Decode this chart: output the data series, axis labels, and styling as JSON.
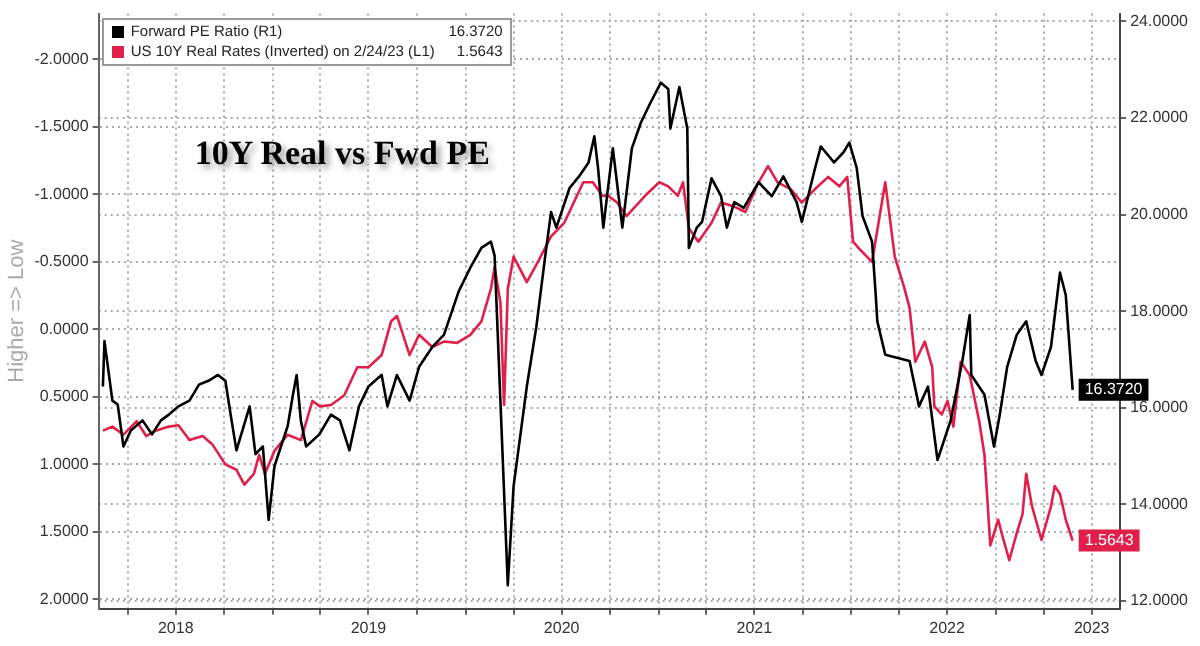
{
  "chart_data": {
    "type": "line",
    "title": "10Y Real vs Fwd PE",
    "ylabel": "Higher => Low",
    "legend": "top left",
    "grid": true,
    "annotations": [
      "16.3720",
      "1.5643"
    ],
    "xlim": [
      "2018-02-05",
      "2023-05-25"
    ],
    "xticks": [
      {
        "value": "2018-04-01",
        "label": null
      },
      {
        "value": "2018-07-01",
        "label": "2018"
      },
      {
        "value": "2018-10-01",
        "label": null
      },
      {
        "value": "2019-01-01",
        "label": null
      },
      {
        "value": "2019-04-01",
        "label": null
      },
      {
        "value": "2019-07-01",
        "label": "2019"
      },
      {
        "value": "2019-10-01",
        "label": null
      },
      {
        "value": "2020-01-01",
        "label": null
      },
      {
        "value": "2020-04-01",
        "label": null
      },
      {
        "value": "2020-07-01",
        "label": "2020"
      },
      {
        "value": "2020-10-01",
        "label": null
      },
      {
        "value": "2021-01-01",
        "label": null
      },
      {
        "value": "2021-04-01",
        "label": null
      },
      {
        "value": "2021-07-01",
        "label": "2021"
      },
      {
        "value": "2021-10-01",
        "label": null
      },
      {
        "value": "2022-01-01",
        "label": null
      },
      {
        "value": "2022-04-01",
        "label": null
      },
      {
        "value": "2022-07-01",
        "label": "2022"
      },
      {
        "value": "2022-10-01",
        "label": null
      },
      {
        "value": "2023-01-01",
        "label": null
      },
      {
        "value": "2023-04-01",
        "label": "2023"
      }
    ],
    "ylim": [
      2.07,
      -2.34
    ],
    "yticks": [
      {
        "value": -2,
        "label": "-2.0000"
      },
      {
        "value": -1.5,
        "label": "-1.5000"
      },
      {
        "value": -1,
        "label": "-1.0000"
      },
      {
        "value": -0.5,
        "label": "-0.5000"
      },
      {
        "value": 0,
        "label": "0.0000"
      },
      {
        "value": 0.5,
        "label": "0.5000"
      },
      {
        "value": 1,
        "label": "1.0000"
      },
      {
        "value": 1.5,
        "label": "1.5000"
      },
      {
        "value": 2,
        "label": "2.0000"
      }
    ],
    "y2lim": [
      11.84,
      24.16
    ],
    "y2ticks": [
      {
        "value": 12,
        "label": "12.0000"
      },
      {
        "value": 14,
        "label": "14.0000"
      },
      {
        "value": 16,
        "label": "16.0000"
      },
      {
        "value": 18,
        "label": "18.0000"
      },
      {
        "value": 20,
        "label": "20.0000"
      },
      {
        "value": 22,
        "label": "22.0000"
      },
      {
        "value": 24,
        "label": "24.0000"
      }
    ],
    "series": [
      {
        "name": "Forward PE Ratio (R1)",
        "color": "#000000",
        "axis": "y2",
        "x": [
          "2018-02-13",
          "2018-02-16",
          "2018-03-03",
          "2018-03-13",
          "2018-03-24",
          "2018-04-07",
          "2018-04-29",
          "2018-05-17",
          "2018-06-03",
          "2018-06-18",
          "2018-07-06",
          "2018-07-27",
          "2018-08-14",
          "2018-09-01",
          "2018-09-19",
          "2018-10-03",
          "2018-10-13",
          "2018-10-24",
          "2018-11-18",
          "2018-11-29",
          "2018-12-13",
          "2018-12-24",
          "2019-01-04",
          "2019-01-29",
          "2019-02-08",
          "2019-02-15",
          "2019-02-23",
          "2019-03-05",
          "2019-03-30",
          "2019-04-21",
          "2019-05-08",
          "2019-05-26",
          "2019-06-13",
          "2019-07-01",
          "2019-07-26",
          "2019-08-06",
          "2019-08-24",
          "2019-09-17",
          "2019-10-05",
          "2019-10-30",
          "2019-11-21",
          "2019-12-19",
          "2020-01-10",
          "2020-01-31",
          "2020-02-18",
          "2020-02-25",
          "2020-03-07",
          "2020-03-21",
          "2020-04-01",
          "2020-04-26",
          "2020-05-14",
          "2020-05-31",
          "2020-06-11",
          "2020-06-21",
          "2020-07-16",
          "2020-08-03",
          "2020-08-21",
          "2020-09-01",
          "2020-09-08",
          "2020-09-18",
          "2020-09-25",
          "2020-10-06",
          "2020-10-24",
          "2020-11-11",
          "2020-11-28",
          "2020-12-16",
          "2021-01-05",
          "2021-01-19",
          "2021-01-23",
          "2021-02-09",
          "2021-02-24",
          "2021-02-27",
          "2021-03-14",
          "2021-03-24",
          "2021-04-11",
          "2021-04-29",
          "2021-05-10",
          "2021-05-24",
          "2021-06-11",
          "2021-07-09",
          "2021-08-03",
          "2021-08-25",
          "2021-09-19",
          "2021-09-29",
          "2021-10-24",
          "2021-11-04",
          "2021-11-29",
          "2021-12-17",
          "2021-12-28",
          "2022-01-11",
          "2022-01-22",
          "2022-02-09",
          "2022-02-16",
          "2022-02-19",
          "2022-03-06",
          "2022-04-21",
          "2022-05-09",
          "2022-05-26",
          "2022-06-13",
          "2022-07-08",
          "2022-07-30",
          "2022-08-13",
          "2022-08-16",
          "2022-09-10",
          "2022-09-28",
          "2022-10-09",
          "2022-10-23",
          "2022-11-10",
          "2022-11-28",
          "2022-12-16",
          "2022-12-27",
          "2023-01-14",
          "2023-01-31",
          "2023-02-11",
          "2023-02-24"
        ],
        "values": [
          16.44,
          17.38,
          16.15,
          16.07,
          15.2,
          15.53,
          15.74,
          15.45,
          15.74,
          15.86,
          16.03,
          16.15,
          16.48,
          16.56,
          16.68,
          16.56,
          15.86,
          15.12,
          16.03,
          15.04,
          15.2,
          13.68,
          14.79,
          15.62,
          16.27,
          16.68,
          15.74,
          15.2,
          15.45,
          15.86,
          15.74,
          15.12,
          16.03,
          16.44,
          16.68,
          16.03,
          16.68,
          16.15,
          16.85,
          17.26,
          17.51,
          18.41,
          18.9,
          19.31,
          19.44,
          19.15,
          16.15,
          12.33,
          14.38,
          16.44,
          17.67,
          19.15,
          20.05,
          19.73,
          20.55,
          20.79,
          21.08,
          21.62,
          20.96,
          19.73,
          20.38,
          21.37,
          19.73,
          21.37,
          21.9,
          22.31,
          22.73,
          22.6,
          21.78,
          22.64,
          21.78,
          19.31,
          19.73,
          19.85,
          20.75,
          20.38,
          19.73,
          20.26,
          20.14,
          20.67,
          20.38,
          20.79,
          20.26,
          19.85,
          20.96,
          21.41,
          21.08,
          21.29,
          21.49,
          20.96,
          19.97,
          19.44,
          18.33,
          17.79,
          17.1,
          16.97,
          16.03,
          16.44,
          14.92,
          15.74,
          16.97,
          17.92,
          16.68,
          16.27,
          15.2,
          15.86,
          16.85,
          17.51,
          17.79,
          16.97,
          16.68,
          17.26,
          18.8,
          18.33,
          16.372
        ],
        "value_labels": [
          null,
          null,
          null,
          null,
          null,
          null,
          null,
          null,
          null,
          null,
          null,
          null,
          null,
          null,
          null,
          null,
          null,
          null,
          null,
          null,
          null,
          null,
          null,
          null,
          null,
          null,
          null,
          null,
          null,
          null,
          null,
          null,
          null,
          null,
          null,
          null,
          null,
          null,
          null,
          null,
          null,
          null,
          null,
          null,
          null,
          null,
          null,
          null,
          null,
          null,
          null,
          null,
          null,
          null,
          null,
          null,
          null,
          null,
          null,
          null,
          null,
          null,
          null,
          null,
          null,
          null,
          null,
          null,
          null,
          null,
          null,
          null,
          null,
          null,
          null,
          null,
          null,
          null,
          null,
          null,
          null,
          null,
          null,
          null,
          null,
          null,
          null,
          null,
          null,
          null,
          null,
          null,
          null,
          null,
          null,
          null,
          null,
          null,
          null,
          null,
          null,
          null,
          null,
          null,
          null,
          null,
          null,
          null,
          null,
          null,
          null,
          null,
          null,
          null,
          "16.3720"
        ]
      },
      {
        "name": "US 10Y Real Rates (Inverted) on 2/24/23 (L1)",
        "color": "#e0204a",
        "x": [
          "2018-02-13",
          "2018-03-03",
          "2018-03-24",
          "2018-04-18",
          "2018-05-06",
          "2018-05-24",
          "2018-06-18",
          "2018-07-06",
          "2018-07-27",
          "2018-08-21",
          "2018-09-08",
          "2018-10-03",
          "2018-10-24",
          "2018-11-08",
          "2018-11-26",
          "2018-12-06",
          "2018-12-17",
          "2019-01-04",
          "2019-01-29",
          "2019-02-23",
          "2019-03-17",
          "2019-03-31",
          "2019-04-21",
          "2019-05-16",
          "2019-06-10",
          "2019-07-01",
          "2019-07-26",
          "2019-08-13",
          "2019-08-24",
          "2019-09-17",
          "2019-10-05",
          "2019-10-30",
          "2019-11-21",
          "2019-12-16",
          "2020-01-10",
          "2020-01-31",
          "2020-02-18",
          "2020-02-25",
          "2020-03-07",
          "2020-03-14",
          "2020-03-21",
          "2020-04-01",
          "2020-04-26",
          "2020-05-17",
          "2020-06-11",
          "2020-07-06",
          "2020-07-24",
          "2020-08-11",
          "2020-08-29",
          "2020-09-16",
          "2020-09-27",
          "2020-10-14",
          "2020-11-01",
          "2020-12-06",
          "2021-01-02",
          "2021-01-19",
          "2021-02-06",
          "2021-02-16",
          "2021-02-27",
          "2021-03-17",
          "2021-04-11",
          "2021-04-29",
          "2021-05-24",
          "2021-06-14",
          "2021-07-09",
          "2021-07-27",
          "2021-08-14",
          "2021-09-08",
          "2021-09-29",
          "2021-10-24",
          "2021-11-18",
          "2021-12-09",
          "2021-12-24",
          "2022-01-04",
          "2022-01-15",
          "2022-02-09",
          "2022-03-06",
          "2022-03-24",
          "2022-04-11",
          "2022-04-21",
          "2022-05-02",
          "2022-05-20",
          "2022-06-03",
          "2022-06-07",
          "2022-06-21",
          "2022-07-02",
          "2022-07-13",
          "2022-07-27",
          "2022-08-13",
          "2022-08-31",
          "2022-09-10",
          "2022-09-21",
          "2022-10-06",
          "2022-10-16",
          "2022-10-27",
          "2022-11-10",
          "2022-11-21",
          "2022-11-28",
          "2022-12-09",
          "2022-12-27",
          "2023-01-14",
          "2023-01-21",
          "2023-01-31",
          "2023-02-11",
          "2023-02-24"
        ],
        "values": [
          0.75,
          0.72,
          0.78,
          0.68,
          0.79,
          0.75,
          0.72,
          0.71,
          0.82,
          0.79,
          0.85,
          1.0,
          1.04,
          1.15,
          1.07,
          0.93,
          1.07,
          0.9,
          0.78,
          0.82,
          0.53,
          0.57,
          0.56,
          0.49,
          0.28,
          0.28,
          0.19,
          -0.06,
          -0.1,
          0.19,
          0.04,
          0.13,
          0.09,
          0.1,
          0.04,
          -0.06,
          -0.3,
          -0.46,
          -0.2,
          0.56,
          -0.3,
          -0.54,
          -0.35,
          -0.5,
          -0.69,
          -0.79,
          -0.94,
          -1.09,
          -1.09,
          -0.99,
          -0.99,
          -0.94,
          -0.84,
          -0.99,
          -1.09,
          -1.06,
          -0.99,
          -1.09,
          -0.75,
          -0.65,
          -0.79,
          -0.94,
          -0.91,
          -0.87,
          -1.09,
          -1.21,
          -1.09,
          -1.04,
          -0.94,
          -1.04,
          -1.13,
          -1.06,
          -1.13,
          -0.65,
          -0.6,
          -0.5,
          -1.09,
          -0.54,
          -0.31,
          -0.16,
          0.24,
          0.09,
          0.28,
          0.57,
          0.63,
          0.53,
          0.72,
          0.24,
          0.34,
          0.68,
          0.93,
          1.6,
          1.41,
          1.56,
          1.71,
          1.51,
          1.37,
          1.07,
          1.31,
          1.56,
          1.31,
          1.16,
          1.22,
          1.41,
          1.5643
        ],
        "value_labels": [
          null,
          null,
          null,
          null,
          null,
          null,
          null,
          null,
          null,
          null,
          null,
          null,
          null,
          null,
          null,
          null,
          null,
          null,
          null,
          null,
          null,
          null,
          null,
          null,
          null,
          null,
          null,
          null,
          null,
          null,
          null,
          null,
          null,
          null,
          null,
          null,
          null,
          null,
          null,
          null,
          null,
          null,
          null,
          null,
          null,
          null,
          null,
          null,
          null,
          null,
          null,
          null,
          null,
          null,
          null,
          null,
          null,
          null,
          null,
          null,
          null,
          null,
          null,
          null,
          null,
          null,
          null,
          null,
          null,
          null,
          null,
          null,
          null,
          null,
          null,
          null,
          null,
          null,
          null,
          null,
          null,
          null,
          null,
          null,
          null,
          null,
          null,
          null,
          null,
          null,
          null,
          null,
          null,
          null,
          null,
          null,
          null,
          null,
          null,
          null,
          null,
          null,
          null,
          null,
          "1.5643"
        ]
      }
    ]
  }
}
